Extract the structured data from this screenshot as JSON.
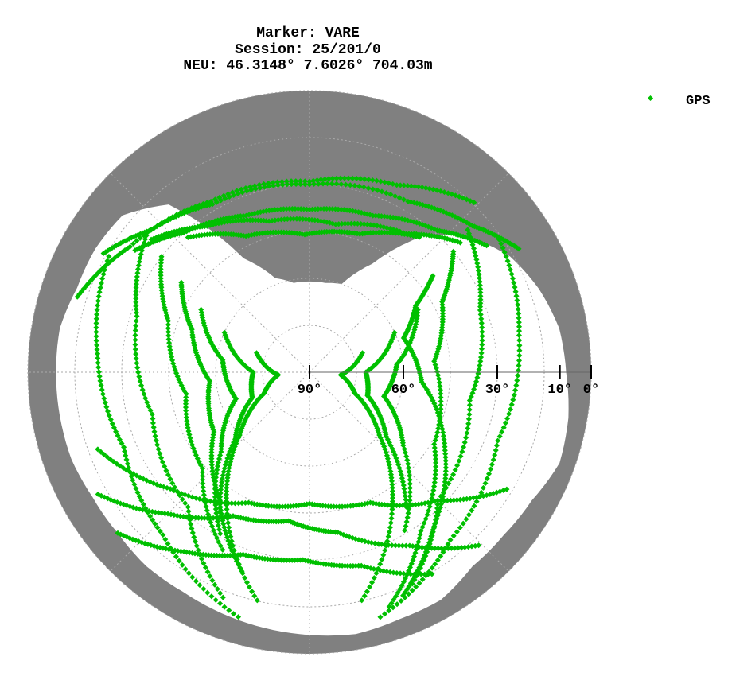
{
  "title": {
    "line1": "Marker: VARE",
    "line2": "Session: 25/201/0",
    "line3": "NEU: 46.3148° 7.6026° 704.03m"
  },
  "legend": {
    "label": "GPS",
    "placement": "top-right"
  },
  "colors": {
    "satellite": "#00c000",
    "obstruction": "#808080",
    "grid": "#aaaaaa",
    "axis": "#000000",
    "background": "#ffffff"
  },
  "chart_data": {
    "type": "scatter",
    "projection": "polar skyplot",
    "grid": true,
    "elevation_ticks": [
      {
        "elevation": 90,
        "label": "90°"
      },
      {
        "elevation": 60,
        "label": "60°"
      },
      {
        "elevation": 30,
        "label": "30°"
      },
      {
        "elevation": 10,
        "label": "10°"
      },
      {
        "elevation": 0,
        "label": "0°"
      }
    ],
    "elevation_grid_rings": [
      75,
      60,
      45,
      30,
      15,
      0
    ],
    "azimuth_grid_step_deg": 45,
    "obstruction_horizon": {
      "azimuth_deg": [
        0,
        10,
        20,
        30,
        40,
        50,
        60,
        70,
        80,
        90,
        100,
        110,
        120,
        130,
        140,
        150,
        160,
        170,
        180,
        190,
        200,
        210,
        220,
        230,
        240,
        250,
        260,
        270,
        280,
        290,
        300,
        310,
        320,
        330,
        340,
        350,
        360
      ],
      "elevation_deg": [
        61,
        61,
        60,
        50,
        33,
        23,
        16,
        12,
        9,
        8,
        6,
        5,
        8,
        9,
        9,
        6,
        6,
        5,
        6,
        7,
        8,
        9,
        9,
        10,
        10,
        9,
        9,
        9,
        9,
        11,
        11,
        12,
        20,
        48,
        58,
        61,
        61
      ]
    },
    "series": [
      {
        "name": "GPS",
        "passes": [
          {
            "az": [
              305,
              318,
              338,
              0,
              22,
              42,
              55
            ],
            "el": [
              22,
              30,
              36,
              38,
              36,
              29,
              20
            ]
          },
          {
            "az": [
              300,
              312,
              330,
              0,
              30,
              48,
              60
            ],
            "el": [
              14,
              22,
              28,
              30,
              27,
              20,
              12
            ]
          },
          {
            "az": [
              310,
              325,
              345,
              10,
              35,
              50
            ],
            "el": [
              24,
              33,
              40,
              42,
              36,
              26
            ]
          },
          {
            "az": [
              318,
              335,
              358,
              20,
              40
            ],
            "el": [
              32,
              42,
              46,
              43,
              34
            ]
          },
          {
            "az": [
              288,
              305,
              330,
              0,
              25,
              45
            ],
            "el": [
              12,
              20,
              27,
              29,
              24,
              14
            ]
          },
          {
            "az": [
              52,
              58,
              70,
              95,
              120,
              142,
              158
            ],
            "el": [
              40,
              50,
              58,
              54,
              40,
              26,
              12
            ]
          },
          {
            "az": [
              50,
              62,
              85,
              120,
              145,
              162
            ],
            "el": [
              30,
              42,
              50,
              44,
              28,
              10
            ]
          },
          {
            "az": [
              48,
              70,
              100,
              135,
              155
            ],
            "el": [
              22,
              32,
              38,
              32,
              14
            ]
          },
          {
            "az": [
              55,
              80,
              110,
              140,
              165
            ],
            "el": [
              16,
              22,
              26,
              20,
              8
            ]
          },
          {
            "az": [
              60,
              85,
              108,
              128,
              150
            ],
            "el": [
              50,
              62,
              65,
              52,
              30
            ]
          },
          {
            "az": [
              65,
              90,
              112,
              130,
              145
            ],
            "el": [
              60,
              72,
              70,
              58,
              36
            ]
          },
          {
            "az": [
              70,
              95,
              115,
              132,
              148,
              168
            ],
            "el": [
              72,
              80,
              74,
              60,
              40,
              14
            ]
          },
          {
            "az": [
              305,
              290,
              265,
              238,
              215,
              198
            ],
            "el": [
              40,
              50,
              58,
              54,
              40,
              22
            ]
          },
          {
            "az": [
              308,
              290,
              260,
              228,
              205
            ],
            "el": [
              30,
              42,
              50,
              44,
              26
            ]
          },
          {
            "az": [
              310,
              288,
              255,
              222,
              200
            ],
            "el": [
              22,
              32,
              38,
              32,
              12
            ]
          },
          {
            "az": [
              300,
              275,
              248,
              222,
              195
            ],
            "el": [
              16,
              22,
              26,
              20,
              8
            ]
          },
          {
            "az": [
              300,
              278,
              250,
              228,
              208
            ],
            "el": [
              50,
              62,
              65,
              52,
              30
            ]
          },
          {
            "az": [
              295,
              270,
              246,
              228,
              212
            ],
            "el": [
              60,
              72,
              70,
              58,
              36
            ]
          },
          {
            "az": [
              290,
              265,
              245,
              228,
              212,
              192
            ],
            "el": [
              72,
              80,
              74,
              60,
              40,
              14
            ]
          },
          {
            "az": [
              240,
              225,
              208,
              188,
              170,
              150,
              135
            ],
            "el": [
              12,
              26,
              38,
              42,
              38,
              26,
              12
            ]
          },
          {
            "az": [
              250,
              230,
              205,
              180,
              155,
              135,
              120
            ],
            "el": [
              18,
              32,
              44,
              48,
              44,
              32,
              16
            ]
          },
          {
            "az": [
              230,
              215,
              200,
              182,
              165,
              148
            ],
            "el": [
              10,
              20,
              28,
              30,
              26,
              14
            ]
          }
        ]
      }
    ]
  }
}
